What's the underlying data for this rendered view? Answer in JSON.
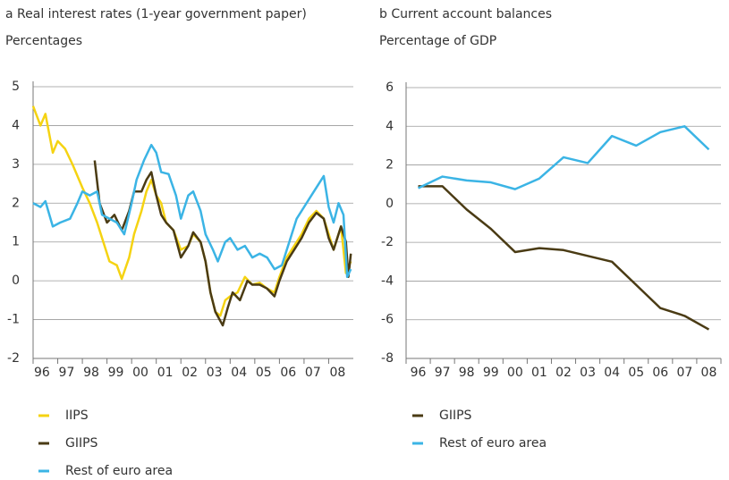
{
  "chart_data": [
    {
      "type": "line",
      "title": "a  Real interest rates (1-year government paper)",
      "subtitle": "Percentages",
      "xlim": [
        1996,
        2009
      ],
      "xticks": [
        {
          "value": 1996,
          "label": "96"
        },
        {
          "value": 1997,
          "label": "97"
        },
        {
          "value": 1998,
          "label": "98"
        },
        {
          "value": 1999,
          "label": "99"
        },
        {
          "value": 2000,
          "label": "00"
        },
        {
          "value": 2001,
          "label": "01"
        },
        {
          "value": 2002,
          "label": "02"
        },
        {
          "value": 2003,
          "label": "03"
        },
        {
          "value": 2004,
          "label": "04"
        },
        {
          "value": 2005,
          "label": "05"
        },
        {
          "value": 2006,
          "label": "06"
        },
        {
          "value": 2007,
          "label": "07"
        },
        {
          "value": 2008,
          "label": "08"
        }
      ],
      "ylim": [
        -2,
        5
      ],
      "yticks": [
        -2,
        -1,
        0,
        1,
        2,
        3,
        4,
        5
      ],
      "grid": true,
      "series": [
        {
          "name": "IIPS",
          "color": "#f5d312",
          "x": [
            1996.0,
            1996.3,
            1996.5,
            1996.8,
            1997.0,
            1997.3,
            1997.6,
            1998.0,
            1998.3,
            1998.6,
            1998.9,
            1999.1,
            1999.4,
            1999.6,
            1999.9,
            2000.1,
            2000.4,
            2000.6,
            2000.8,
            2001.0,
            2001.2,
            2001.4,
            2001.7,
            2002.0,
            2002.3,
            2002.5,
            2002.8,
            2003.0,
            2003.2,
            2003.4,
            2003.6,
            2003.8,
            2004.0,
            2004.3,
            2004.6,
            2004.9,
            2005.2,
            2005.5,
            2005.8,
            2006.0,
            2006.3,
            2006.6,
            2006.9,
            2007.2,
            2007.5,
            2007.8,
            2008.0,
            2008.2,
            2008.5,
            2008.7,
            2008.9
          ],
          "values": [
            4.5,
            4.0,
            4.3,
            3.3,
            3.6,
            3.4,
            3.0,
            2.4,
            2.0,
            1.5,
            0.9,
            0.5,
            0.4,
            0.05,
            0.6,
            1.2,
            1.8,
            2.3,
            2.6,
            2.2,
            2.0,
            1.5,
            1.3,
            0.8,
            0.9,
            1.2,
            1.0,
            0.5,
            -0.3,
            -0.8,
            -0.9,
            -0.5,
            -0.4,
            -0.3,
            0.1,
            -0.1,
            -0.05,
            -0.2,
            -0.3,
            0.1,
            0.6,
            0.9,
            1.2,
            1.6,
            1.8,
            1.6,
            1.2,
            0.8,
            1.4,
            0.2,
            0.5
          ]
        },
        {
          "name": "GIIPS",
          "color": "#4a3b14",
          "x": [
            1998.5,
            1998.7,
            1999.0,
            1999.3,
            1999.6,
            1999.9,
            2000.1,
            2000.4,
            2000.6,
            2000.8,
            2001.0,
            2001.2,
            2001.4,
            2001.7,
            2002.0,
            2002.3,
            2002.5,
            2002.8,
            2003.0,
            2003.2,
            2003.4,
            2003.7,
            2003.9,
            2004.1,
            2004.4,
            2004.7,
            2004.9,
            2005.2,
            2005.5,
            2005.8,
            2006.0,
            2006.3,
            2006.6,
            2006.9,
            2007.2,
            2007.5,
            2007.8,
            2008.0,
            2008.2,
            2008.5,
            2008.7,
            2008.8,
            2008.9
          ],
          "values": [
            3.1,
            2.0,
            1.5,
            1.7,
            1.3,
            1.8,
            2.3,
            2.3,
            2.6,
            2.8,
            2.2,
            1.7,
            1.5,
            1.3,
            0.6,
            0.9,
            1.25,
            1.0,
            0.5,
            -0.3,
            -0.8,
            -1.15,
            -0.7,
            -0.3,
            -0.5,
            0.0,
            -0.1,
            -0.1,
            -0.2,
            -0.4,
            0.0,
            0.5,
            0.8,
            1.1,
            1.5,
            1.75,
            1.6,
            1.1,
            0.8,
            1.4,
            1.0,
            0.1,
            0.7
          ]
        },
        {
          "name": "Rest of euro area",
          "color": "#3bb4e5",
          "x": [
            1996.0,
            1996.3,
            1996.5,
            1996.8,
            1997.1,
            1997.5,
            1997.8,
            1998.0,
            1998.3,
            1998.6,
            1998.8,
            1999.1,
            1999.4,
            1999.7,
            2000.0,
            2000.2,
            2000.5,
            2000.8,
            2001.0,
            2001.2,
            2001.5,
            2001.8,
            2002.0,
            2002.3,
            2002.5,
            2002.8,
            2003.0,
            2003.3,
            2003.5,
            2003.8,
            2004.0,
            2004.3,
            2004.6,
            2004.9,
            2005.2,
            2005.5,
            2005.8,
            2006.1,
            2006.4,
            2006.7,
            2007.0,
            2007.3,
            2007.6,
            2007.8,
            2008.0,
            2008.2,
            2008.4,
            2008.6,
            2008.75,
            2008.9
          ],
          "values": [
            2.0,
            1.9,
            2.05,
            1.4,
            1.5,
            1.6,
            2.0,
            2.3,
            2.2,
            2.3,
            1.7,
            1.6,
            1.5,
            1.2,
            2.0,
            2.6,
            3.1,
            3.5,
            3.3,
            2.8,
            2.75,
            2.2,
            1.6,
            2.2,
            2.3,
            1.8,
            1.2,
            0.8,
            0.5,
            1.0,
            1.1,
            0.8,
            0.9,
            0.6,
            0.7,
            0.6,
            0.3,
            0.4,
            1.0,
            1.6,
            1.9,
            2.2,
            2.5,
            2.7,
            1.9,
            1.5,
            2.0,
            1.7,
            0.1,
            0.3
          ]
        }
      ]
    },
    {
      "type": "line",
      "title": "b  Current account balances",
      "subtitle": "Percentage of GDP",
      "categories": [
        "96",
        "97",
        "98",
        "99",
        "00",
        "01",
        "02",
        "03",
        "04",
        "05",
        "06",
        "07",
        "08"
      ],
      "ylim": [
        -8,
        6
      ],
      "yticks": [
        -8,
        -6,
        -4,
        -2,
        0,
        2,
        4,
        6
      ],
      "grid": true,
      "series": [
        {
          "name": "GIIPS",
          "color": "#4a3b14",
          "values": [
            0.9,
            0.9,
            -0.3,
            -1.3,
            -2.5,
            -2.3,
            -2.4,
            -2.7,
            -3.0,
            -4.2,
            -5.4,
            -5.8,
            -6.5
          ]
        },
        {
          "name": "Rest of euro area",
          "color": "#3bb4e5",
          "values": [
            0.8,
            1.4,
            1.2,
            1.1,
            0.75,
            1.3,
            2.4,
            2.1,
            3.5,
            3.0,
            3.7,
            4.0,
            2.8
          ]
        }
      ]
    }
  ]
}
